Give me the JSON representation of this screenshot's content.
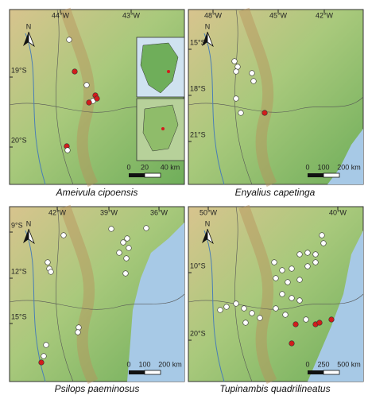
{
  "north_label": "N",
  "panels": [
    {
      "caption": "Ameivula cipoensis",
      "lon_labels": [
        "44°W",
        "43°W"
      ],
      "lat_labels": [
        "19°S",
        "20°S"
      ],
      "scale_labels": [
        "0",
        "20",
        "40 km"
      ]
    },
    {
      "caption": "Enyalius capetinga",
      "lon_labels": [
        "48°W",
        "45°W",
        "42°W"
      ],
      "lat_labels": [
        "15°S",
        "18°S",
        "21°S"
      ],
      "scale_labels": [
        "0",
        "100",
        "200 km"
      ]
    },
    {
      "caption": "Psilops paeminosus",
      "lon_labels": [
        "42°W",
        "39°W",
        "36°W"
      ],
      "lat_labels": [
        "9°S",
        "12°S",
        "15°S"
      ],
      "scale_labels": [
        "0",
        "100",
        "200 km"
      ]
    },
    {
      "caption": "Tupinambis quadrilineatus",
      "lon_labels": [
        "50°W",
        "40°W"
      ],
      "lat_labels": [
        "10°S",
        "20°S"
      ],
      "scale_labels": [
        "0",
        "250",
        "500 km"
      ]
    }
  ]
}
